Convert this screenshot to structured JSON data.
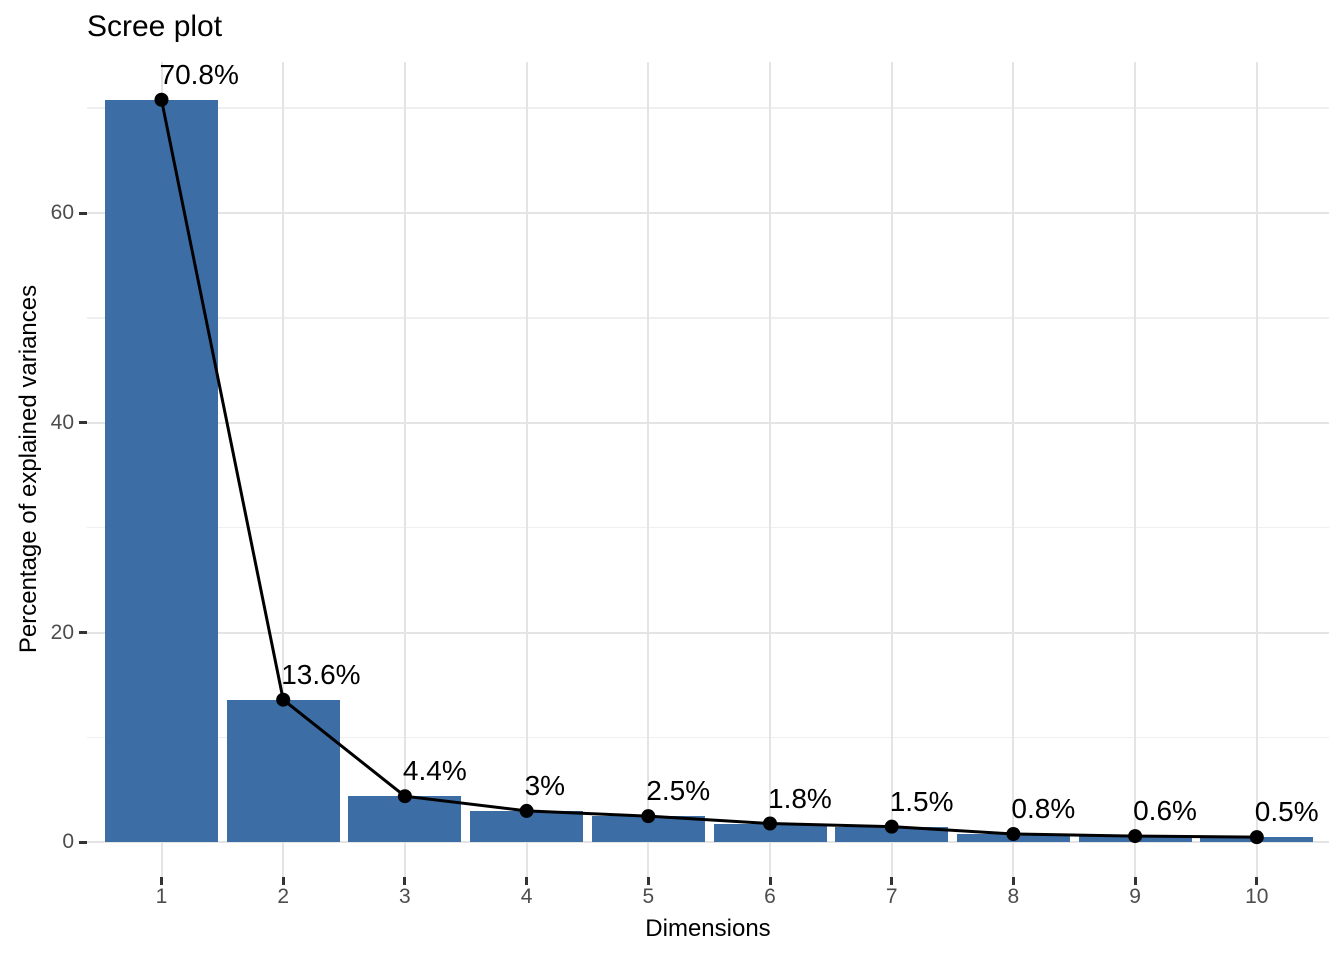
{
  "chart_data": {
    "type": "bar",
    "title": "Scree plot",
    "xlabel": "Dimensions",
    "ylabel": "Percentage of explained variances",
    "categories": [
      "1",
      "2",
      "3",
      "4",
      "5",
      "6",
      "7",
      "8",
      "9",
      "10"
    ],
    "values": [
      70.8,
      13.6,
      4.4,
      3,
      2.5,
      1.8,
      1.5,
      0.8,
      0.6,
      0.5
    ],
    "point_labels": [
      "70.8%",
      "13.6%",
      "4.4%",
      "3%",
      "2.5%",
      "1.8%",
      "1.5%",
      "0.8%",
      "0.6%",
      "0.5%"
    ],
    "overlay": "line-with-points",
    "yticks": [
      0,
      20,
      40,
      60
    ],
    "yminor": [
      10,
      30,
      50,
      70
    ],
    "ylim": [
      -3.3,
      74.4
    ],
    "grid": "on",
    "legend": "none",
    "colors": {
      "bar_fill": "#3C6EA5",
      "line": "#000000",
      "point": "#000000",
      "label_text": "#000000",
      "axis_text": "#4D4D4D",
      "grid_major": "#E4E4E4",
      "grid_minor": "#EFEFEF",
      "tick_mark": "#333333"
    }
  }
}
